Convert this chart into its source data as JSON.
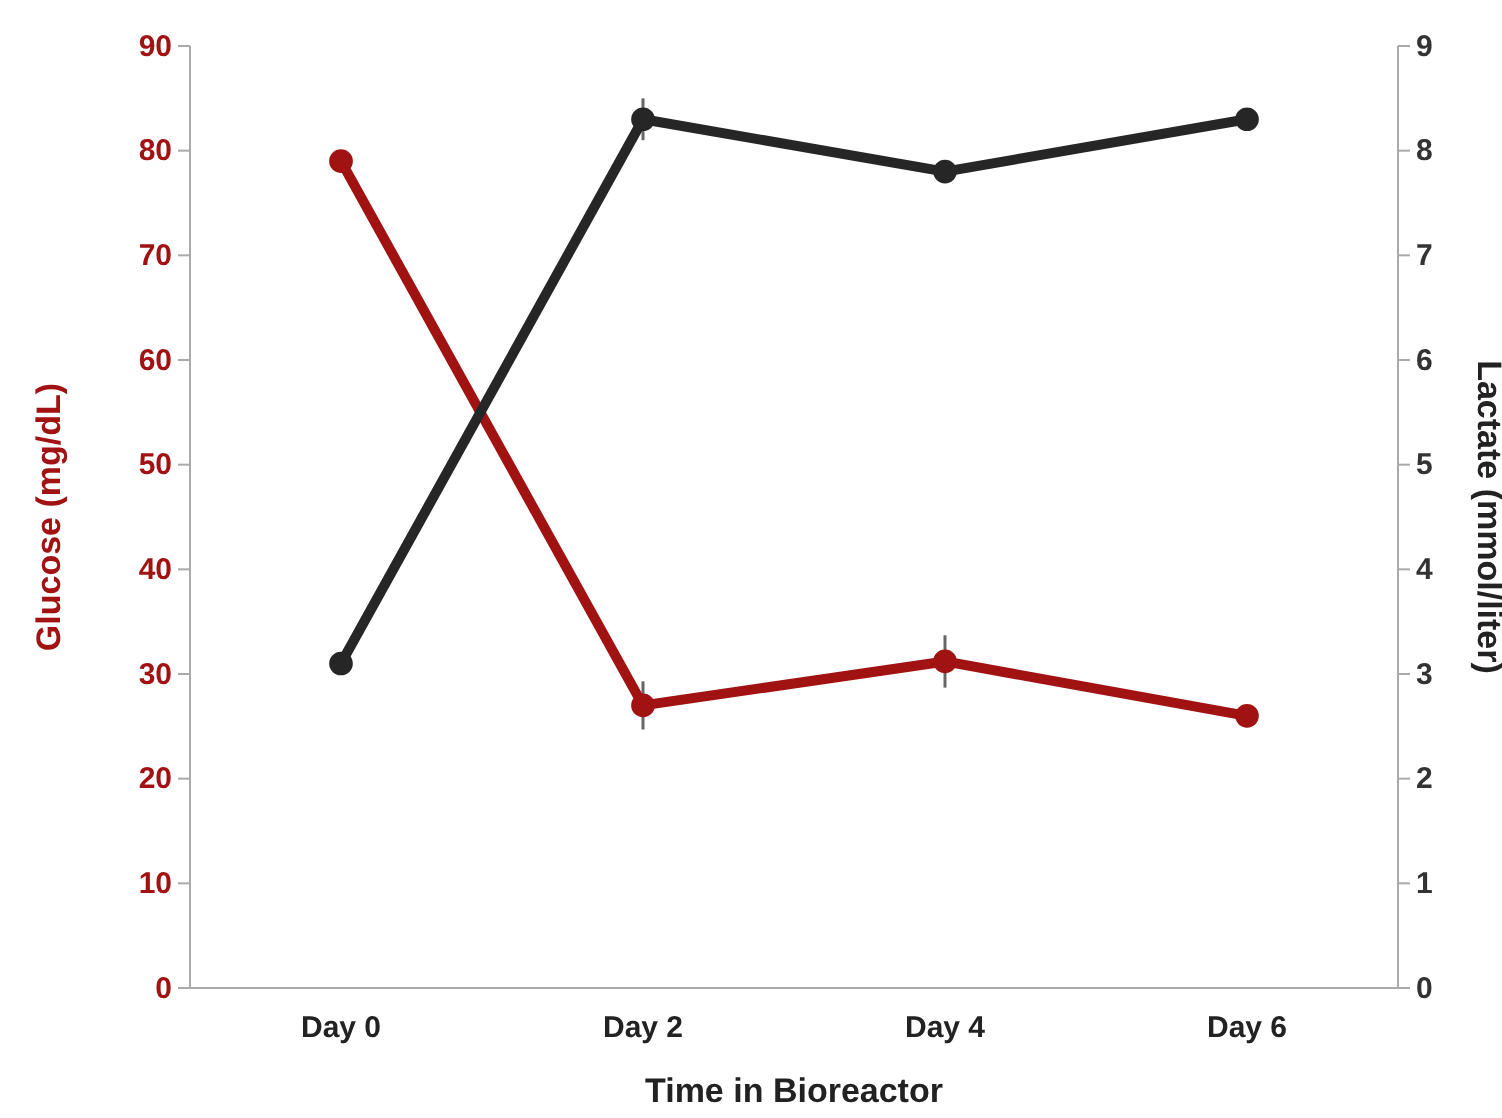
{
  "chart_data": {
    "type": "line",
    "xlabel": "Time in Bioreactor",
    "ylabel": "Glucose (mg/dL)",
    "y2label": "Lactate (mmol/liter)",
    "categories": [
      "Day 0",
      "Day 2",
      "Day 4",
      "Day 6"
    ],
    "series": [
      {
        "color": "#a11212",
        "values": [
          79,
          27,
          31.2,
          26
        ],
        "errors": [
          null,
          2.3,
          2.5,
          null
        ]
      },
      {
        "color": "#262626",
        "values": [
          3.1,
          8.3,
          7.8,
          8.3
        ],
        "errors": [
          null,
          0.2,
          null,
          null
        ],
        "axis": "y2"
      }
    ],
    "ylim": [
      0,
      90
    ],
    "yticks": [
      0,
      10,
      20,
      30,
      40,
      50,
      60,
      70,
      80,
      90
    ],
    "y2lim": [
      0,
      9
    ],
    "y2ticks": [
      0,
      1,
      2,
      3,
      4,
      5,
      6,
      7,
      8,
      9
    ],
    "marker": "circle",
    "grid": false
  }
}
